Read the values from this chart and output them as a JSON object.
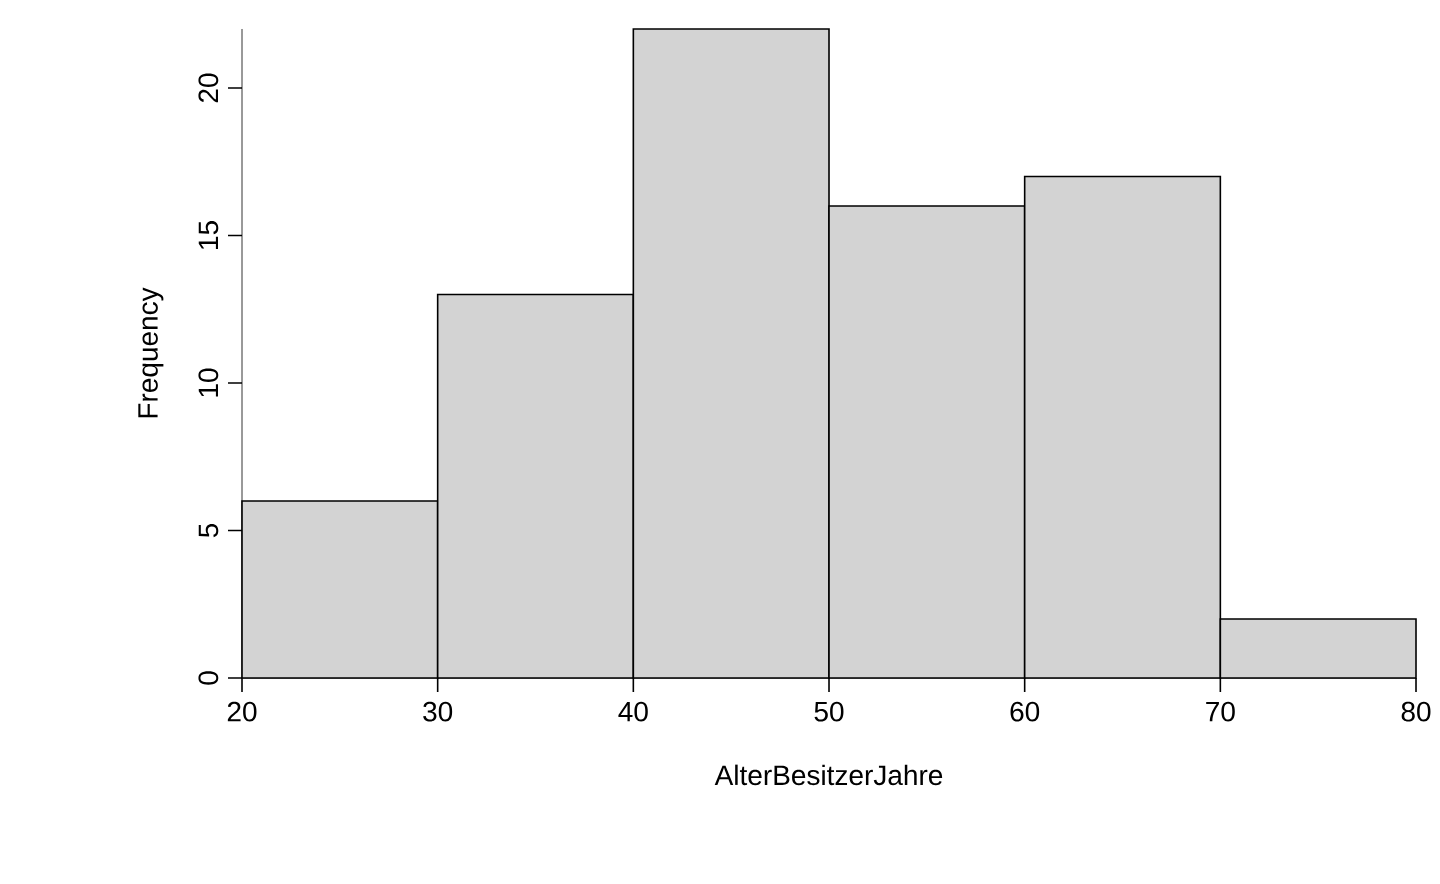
{
  "chart_data": {
    "type": "histogram",
    "xlabel": "AlterBesitzerJahre",
    "ylabel": "Frequency",
    "bins": [
      20,
      30,
      40,
      50,
      60,
      70,
      80
    ],
    "values": [
      6,
      13,
      22,
      16,
      17,
      2
    ],
    "color": "#d3d3d3",
    "xlim": [
      20,
      80
    ],
    "ylim": [
      0,
      22
    ],
    "xticks": [
      20,
      30,
      40,
      50,
      60,
      70,
      80
    ],
    "yticks": [
      0,
      5,
      10,
      15,
      20
    ]
  }
}
